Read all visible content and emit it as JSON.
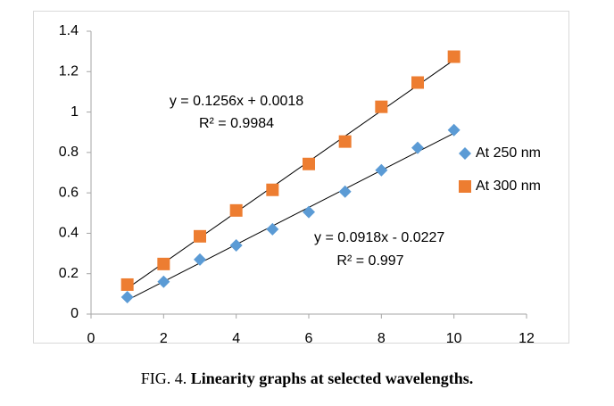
{
  "chart_data": {
    "type": "scatter",
    "x": [
      1,
      2,
      3,
      4,
      5,
      6,
      7,
      8,
      9,
      10
    ],
    "series": [
      {
        "name": "At 250 nm",
        "color": "#5b9bd5",
        "marker": "diamond",
        "values": [
          0.084,
          0.16,
          0.27,
          0.34,
          0.42,
          0.505,
          0.606,
          0.712,
          0.823,
          0.911
        ],
        "trendline": {
          "slope": 0.0918,
          "intercept": -0.0227,
          "equation": "y = 0.0918x - 0.0227",
          "r2": "R² = 0.997"
        }
      },
      {
        "name": "At 300 nm",
        "color": "#ed7d31",
        "marker": "square",
        "values": [
          0.146,
          0.248,
          0.385,
          0.513,
          0.615,
          0.743,
          0.854,
          1.026,
          1.146,
          1.274
        ],
        "trendline": {
          "slope": 0.1256,
          "intercept": 0.0018,
          "equation": "y = 0.1256x + 0.0018",
          "r2": "R² = 0.9984"
        }
      }
    ],
    "xlim": [
      0,
      12
    ],
    "xticks": [
      0,
      2,
      4,
      6,
      8,
      10,
      12
    ],
    "ylim": [
      0,
      1.4
    ],
    "yticks": [
      0,
      0.2,
      0.4,
      0.6,
      0.8,
      1,
      1.2,
      1.4
    ],
    "grid": false,
    "legend": "right"
  },
  "caption": {
    "label": "FIG. 4.",
    "text": "Linearity graphs at selected wavelengths."
  }
}
